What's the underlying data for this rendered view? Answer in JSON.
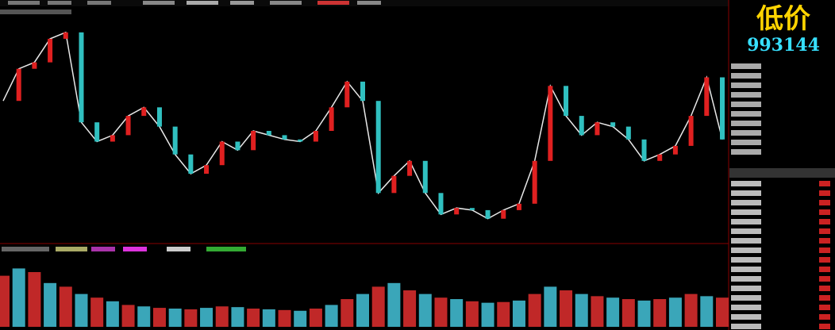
{
  "badge": {
    "title": "低价",
    "code": "993144"
  },
  "chart_data": [
    {
      "type": "line",
      "color": "#e8e8e8",
      "ylim": [
        0,
        100
      ],
      "values": [
        64,
        79,
        82,
        93,
        96,
        54,
        45,
        48,
        57,
        61,
        52,
        39,
        30,
        34,
        45,
        41,
        50,
        48,
        46,
        45,
        50,
        61,
        73,
        64,
        21,
        29,
        36,
        21,
        11,
        14,
        13,
        9,
        13,
        16,
        36,
        71,
        57,
        48,
        54,
        52,
        46,
        36,
        39,
        43,
        57,
        75,
        46
      ]
    },
    {
      "type": "bar",
      "color": "#3aa6b9",
      "ylim": [
        0,
        100
      ],
      "values": [
        70,
        80,
        75,
        60,
        55,
        45,
        40,
        35,
        30,
        28,
        26,
        25,
        24,
        26,
        28,
        27,
        25,
        24,
        23,
        22,
        25,
        30,
        38,
        45,
        55,
        60,
        50,
        45,
        40,
        38,
        35,
        33,
        34,
        36,
        45,
        55,
        50,
        45,
        42,
        40,
        38,
        36,
        38,
        40,
        45,
        42,
        40
      ]
    }
  ]
}
